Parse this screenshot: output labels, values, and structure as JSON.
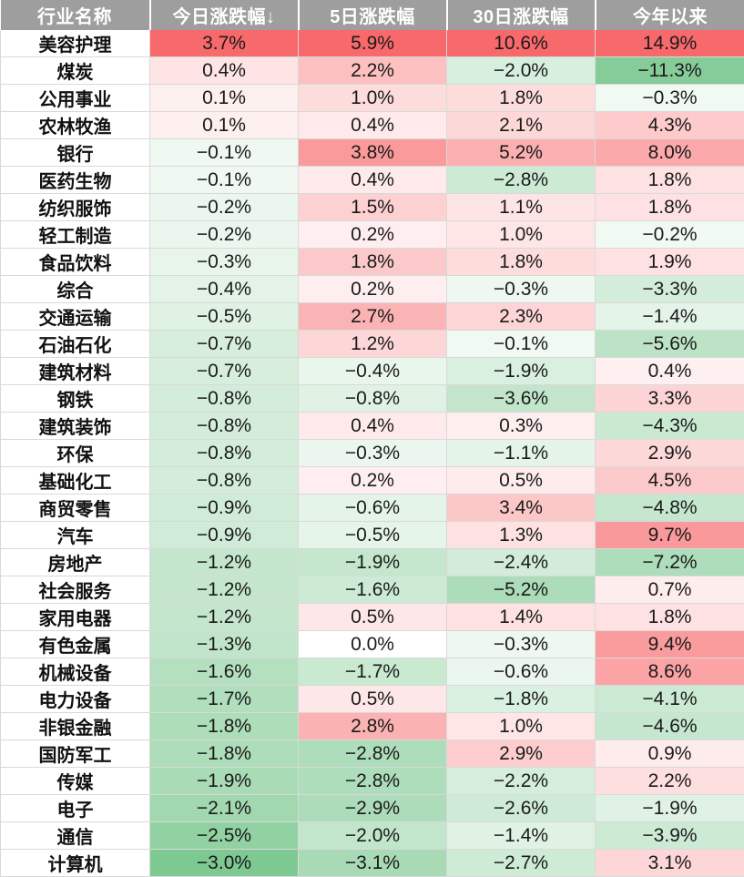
{
  "chart_data": {
    "type": "table",
    "columns": [
      "行业名称",
      "今日涨跌幅↓",
      "5日涨跌幅",
      "30日涨跌幅",
      "今年以来"
    ],
    "rows": [
      {
        "name": "美容护理",
        "values": [
          3.7,
          5.9,
          10.6,
          14.9
        ]
      },
      {
        "name": "煤炭",
        "values": [
          0.4,
          2.2,
          -2.0,
          -11.3
        ]
      },
      {
        "name": "公用事业",
        "values": [
          0.1,
          1.0,
          1.8,
          -0.3
        ]
      },
      {
        "name": "农林牧渔",
        "values": [
          0.1,
          0.4,
          2.1,
          4.3
        ]
      },
      {
        "name": "银行",
        "values": [
          -0.1,
          3.8,
          5.2,
          8.0
        ]
      },
      {
        "name": "医药生物",
        "values": [
          -0.1,
          0.4,
          -2.8,
          1.8
        ]
      },
      {
        "name": "纺织服饰",
        "values": [
          -0.2,
          1.5,
          1.1,
          1.8
        ]
      },
      {
        "name": "轻工制造",
        "values": [
          -0.2,
          0.2,
          1.0,
          -0.2
        ]
      },
      {
        "name": "食品饮料",
        "values": [
          -0.3,
          1.8,
          1.8,
          1.9
        ]
      },
      {
        "name": "综合",
        "values": [
          -0.4,
          0.2,
          -0.3,
          -3.3
        ]
      },
      {
        "name": "交通运输",
        "values": [
          -0.5,
          2.7,
          2.3,
          -1.4
        ]
      },
      {
        "name": "石油石化",
        "values": [
          -0.7,
          1.2,
          -0.1,
          -5.6
        ]
      },
      {
        "name": "建筑材料",
        "values": [
          -0.7,
          -0.4,
          -1.9,
          0.4
        ]
      },
      {
        "name": "钢铁",
        "values": [
          -0.8,
          -0.8,
          -3.6,
          3.3
        ]
      },
      {
        "name": "建筑装饰",
        "values": [
          -0.8,
          0.4,
          0.3,
          -4.3
        ]
      },
      {
        "name": "环保",
        "values": [
          -0.8,
          -0.3,
          -1.1,
          2.9
        ]
      },
      {
        "name": "基础化工",
        "values": [
          -0.8,
          0.2,
          0.5,
          4.5
        ]
      },
      {
        "name": "商贸零售",
        "values": [
          -0.9,
          -0.6,
          3.4,
          -4.8
        ]
      },
      {
        "name": "汽车",
        "values": [
          -0.9,
          -0.5,
          1.3,
          9.7
        ]
      },
      {
        "name": "房地产",
        "values": [
          -1.2,
          -1.9,
          -2.4,
          -7.2
        ]
      },
      {
        "name": "社会服务",
        "values": [
          -1.2,
          -1.6,
          -5.2,
          0.7
        ]
      },
      {
        "name": "家用电器",
        "values": [
          -1.2,
          0.5,
          1.4,
          1.8
        ]
      },
      {
        "name": "有色金属",
        "values": [
          -1.3,
          0.0,
          -0.3,
          9.4
        ]
      },
      {
        "name": "机械设备",
        "values": [
          -1.6,
          -1.7,
          -0.6,
          8.6
        ]
      },
      {
        "name": "电力设备",
        "values": [
          -1.7,
          0.5,
          -1.8,
          -4.1
        ]
      },
      {
        "name": "非银金融",
        "values": [
          -1.8,
          2.8,
          1.0,
          -4.6
        ]
      },
      {
        "name": "国防军工",
        "values": [
          -1.8,
          -2.8,
          2.9,
          0.9
        ]
      },
      {
        "name": "传媒",
        "values": [
          -1.9,
          -2.8,
          -2.2,
          2.2
        ]
      },
      {
        "name": "电子",
        "values": [
          -2.1,
          -2.9,
          -2.6,
          -1.9
        ]
      },
      {
        "name": "通信",
        "values": [
          -2.5,
          -2.0,
          -1.4,
          -3.9
        ]
      },
      {
        "name": "计算机",
        "values": [
          -3.0,
          -3.1,
          -2.7,
          3.1
        ]
      }
    ],
    "unit": "%",
    "colors": {
      "header_bg": "#9e9e9e",
      "header_text": "#ffffff",
      "positive": "#f8696b",
      "negative": "#63be7b",
      "neutral": "#ffffff"
    }
  }
}
